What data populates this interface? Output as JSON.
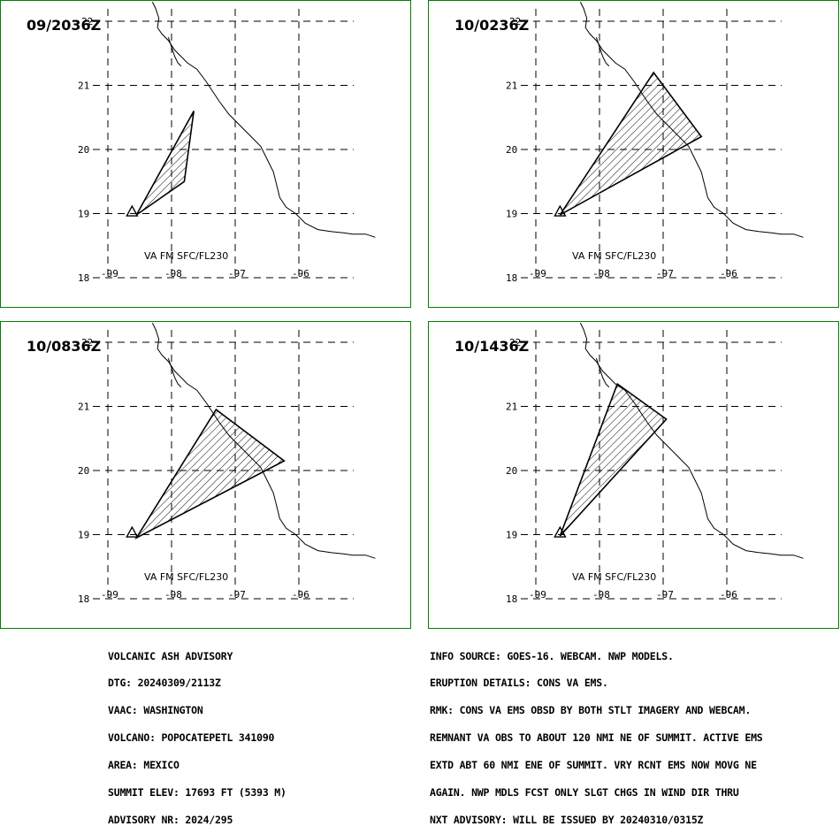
{
  "colors": {
    "panel_border": "#008000",
    "lines": "#000000",
    "background": "#ffffff"
  },
  "panels": [
    {
      "time_label": "09/2036Z",
      "layer_label": "VA FM SFC/FL230",
      "polygon": [
        [
          -98.55,
          18.98
        ],
        [
          -97.65,
          20.6
        ],
        [
          -97.8,
          19.5
        ],
        [
          -98.55,
          18.98
        ]
      ]
    },
    {
      "time_label": "10/0236Z",
      "layer_label": "VA FM SFC/FL230",
      "polygon": [
        [
          -98.62,
          18.98
        ],
        [
          -97.15,
          21.2
        ],
        [
          -96.4,
          20.2
        ],
        [
          -98.62,
          18.98
        ]
      ]
    },
    {
      "time_label": "10/0836Z",
      "layer_label": "VA FM SFC/FL230",
      "polygon": [
        [
          -98.55,
          18.95
        ],
        [
          -97.3,
          20.95
        ],
        [
          -96.23,
          20.15
        ],
        [
          -98.55,
          18.95
        ]
      ]
    },
    {
      "time_label": "10/1436Z",
      "layer_label": "VA FM SFC/FL230",
      "polygon": [
        [
          -98.62,
          18.98
        ],
        [
          -97.72,
          21.35
        ],
        [
          -96.95,
          20.8
        ],
        [
          -98.62,
          18.98
        ]
      ]
    }
  ],
  "map_axes": {
    "lon_ticks": [
      "-99",
      "-98",
      "-97",
      "-96"
    ],
    "lat_ticks": [
      "22",
      "21",
      "20",
      "19",
      "18"
    ]
  },
  "volcano_marker": {
    "lon": -98.62,
    "lat": 19.02
  },
  "advisory_left": [
    "VOLCANIC ASH ADVISORY",
    "DTG: 20240309/2113Z",
    "VAAC: WASHINGTON",
    "VOLCANO: POPOCATEPETL 341090",
    "AREA: MEXICO",
    "SUMMIT ELEV: 17693 FT (5393 M)",
    "ADVISORY NR: 2024/295"
  ],
  "advisory_right": [
    "INFO SOURCE: GOES-16. WEBCAM. NWP MODELS.",
    "ERUPTION DETAILS: CONS VA EMS.",
    "RMK: CONS VA EMS OBSD BY BOTH STLT IMAGERY AND WEBCAM.",
    "REMNANT VA OBS TO ABOUT 120 NMI NE OF SUMMIT. ACTIVE EMS",
    "EXTD ABT 60 NMI ENE OF SUMMIT. VRY RCNT EMS NOW MOVG NE",
    "AGAIN. NWP MDLS FCST ONLY SLGT CHGS IN WIND DIR THRU",
    "NXT ADVISORY: WILL BE ISSUED BY 20240310/0315Z"
  ]
}
